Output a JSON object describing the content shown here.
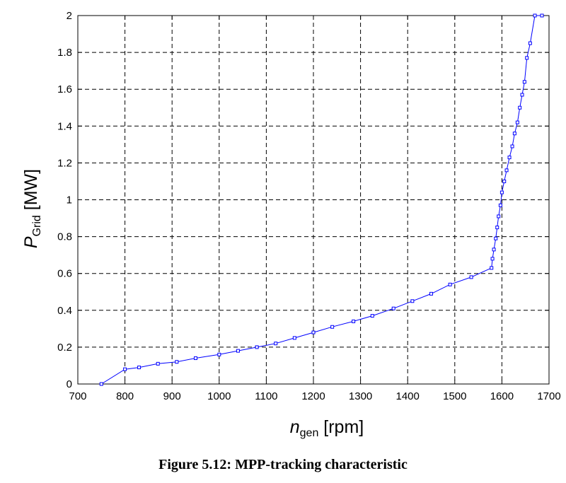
{
  "caption": "Figure 5.12: MPP-tracking characteristic",
  "chart_data": {
    "type": "line",
    "xlabel": {
      "main": "n",
      "sub": "gen",
      "unit": " [rpm]"
    },
    "ylabel": {
      "main": "P",
      "sub": "Grid",
      "unit": " [MW]"
    },
    "xlim": [
      700,
      1700
    ],
    "ylim": [
      0,
      2
    ],
    "x_ticks": [
      "700",
      "800",
      "900",
      "1000",
      "1100",
      "1200",
      "1300",
      "1400",
      "1500",
      "1600",
      "1700"
    ],
    "y_ticks": [
      "0",
      "0.2",
      "0.4",
      "0.6",
      "0.8",
      "1",
      "1.2",
      "1.4",
      "1.6",
      "1.8",
      "2"
    ],
    "grid": true,
    "grid_style": "dashed",
    "line_color": "#0000ff",
    "marker": "square",
    "series": [
      {
        "x": [
          750,
          800,
          830,
          870,
          910,
          950,
          1000,
          1040,
          1080,
          1120,
          1160,
          1200,
          1240,
          1285,
          1325,
          1370,
          1410,
          1450,
          1490,
          1535,
          1578,
          1580,
          1583,
          1587,
          1590,
          1593,
          1597,
          1600,
          1605,
          1610,
          1616,
          1622,
          1627,
          1633,
          1638,
          1643,
          1648,
          1653,
          1660,
          1670,
          1685
        ],
        "y": [
          0.0,
          0.08,
          0.09,
          0.11,
          0.12,
          0.14,
          0.16,
          0.18,
          0.2,
          0.22,
          0.25,
          0.28,
          0.31,
          0.34,
          0.37,
          0.41,
          0.45,
          0.49,
          0.54,
          0.58,
          0.63,
          0.68,
          0.73,
          0.79,
          0.85,
          0.91,
          0.97,
          1.04,
          1.1,
          1.16,
          1.23,
          1.29,
          1.36,
          1.42,
          1.5,
          1.57,
          1.64,
          1.77,
          1.85,
          2.0,
          2.0
        ]
      }
    ]
  }
}
